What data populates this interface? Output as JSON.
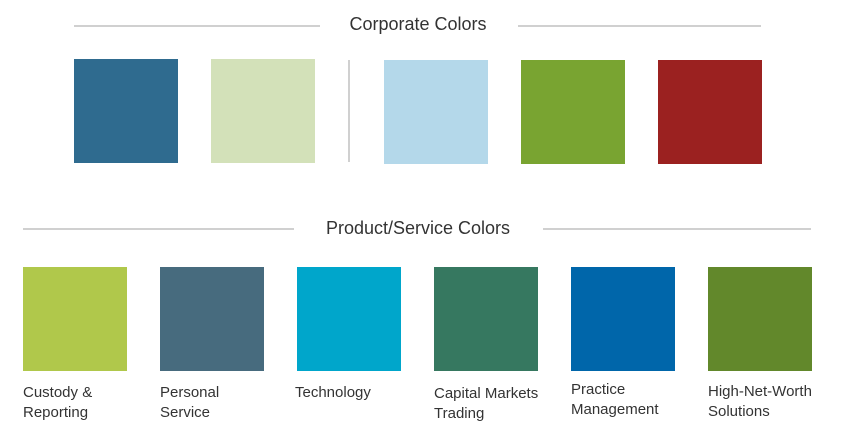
{
  "corporate": {
    "heading": "Corporate Colors",
    "swatches": [
      {
        "color": "#2f6b8f"
      },
      {
        "color": "#d3e1b9"
      },
      {
        "color": "#b4d8ea"
      },
      {
        "color": "#79a431"
      },
      {
        "color": "#9b2120"
      }
    ]
  },
  "product": {
    "heading": "Product/Service Colors",
    "swatches": [
      {
        "color": "#b0c84b",
        "label_lines": [
          "Custody &",
          "Reporting"
        ]
      },
      {
        "color": "#476b7e",
        "label_lines": [
          "Personal",
          "Service"
        ]
      },
      {
        "color": "#00a6cb",
        "label_lines": [
          "Technology",
          ""
        ]
      },
      {
        "color": "#367860",
        "label_lines": [
          "Capital Markets",
          "Trading"
        ]
      },
      {
        "color": "#0066aa",
        "label_lines": [
          "Practice",
          "Management"
        ]
      },
      {
        "color": "#62882b",
        "label_lines": [
          "High-Net-Worth",
          "Solutions"
        ]
      }
    ]
  }
}
